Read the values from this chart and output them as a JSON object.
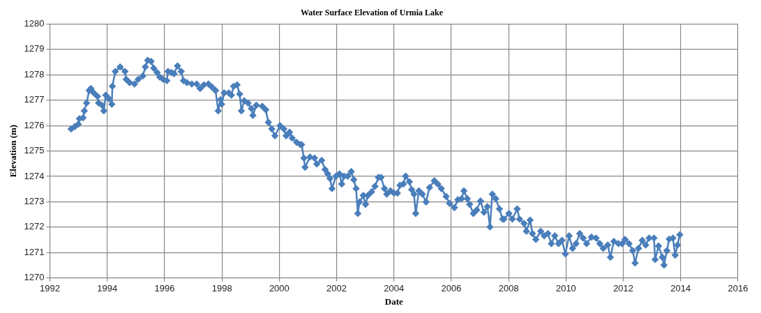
{
  "chart_data": {
    "type": "line",
    "title": "Water Surface Elevation of Urmia Lake",
    "xlabel": "Date",
    "ylabel": "Elevation (m)",
    "color": "#4a7ebb",
    "marker": "diamond",
    "grid": true,
    "xlim": [
      1992,
      2016
    ],
    "xticks": [
      1992,
      1994,
      1996,
      1998,
      2000,
      2002,
      2004,
      2006,
      2008,
      2010,
      2012,
      2014,
      2016
    ],
    "ylim": [
      1270,
      1280
    ],
    "yticks": [
      1270,
      1271,
      1272,
      1273,
      1274,
      1275,
      1276,
      1277,
      1278,
      1279,
      1280
    ],
    "x": [
      1992.74,
      1992.87,
      1992.99,
      1993.03,
      1993.16,
      1993.2,
      1993.28,
      1993.37,
      1993.43,
      1993.53,
      1993.66,
      1993.7,
      1993.82,
      1993.88,
      1993.95,
      1994.05,
      1994.16,
      1994.18,
      1994.28,
      1994.45,
      1994.62,
      1994.66,
      1994.78,
      1994.95,
      1995.08,
      1995.24,
      1995.33,
      1995.41,
      1995.53,
      1995.62,
      1995.74,
      1995.83,
      1995.95,
      1996.08,
      1996.12,
      1996.24,
      1996.33,
      1996.45,
      1996.58,
      1996.66,
      1996.78,
      1996.95,
      1997.12,
      1997.24,
      1997.37,
      1997.53,
      1997.66,
      1997.78,
      1997.87,
      1997.95,
      1997.99,
      1998.08,
      1998.24,
      1998.33,
      1998.41,
      1998.53,
      1998.62,
      1998.68,
      1998.78,
      1998.91,
      1999.03,
      1999.08,
      1999.2,
      1999.41,
      1999.53,
      1999.62,
      1999.74,
      1999.85,
      2000.03,
      2000.16,
      2000.24,
      2000.36,
      2000.45,
      2000.61,
      2000.74,
      2000.78,
      2000.86,
      2000.9,
      2001.07,
      2001.23,
      2001.31,
      2001.48,
      2001.6,
      2001.69,
      2001.77,
      2001.84,
      2001.98,
      2002.1,
      2002.18,
      2002.26,
      2002.39,
      2002.51,
      2002.6,
      2002.68,
      2002.74,
      2002.8,
      2002.93,
      2003.01,
      2003.09,
      2003.22,
      2003.34,
      2003.46,
      2003.55,
      2003.67,
      2003.75,
      2003.88,
      2004.0,
      2004.12,
      2004.21,
      2004.33,
      2004.41,
      2004.54,
      2004.62,
      2004.7,
      2004.76,
      2004.87,
      2004.99,
      2005.12,
      2005.24,
      2005.41,
      2005.53,
      2005.65,
      2005.82,
      2005.94,
      2006.11,
      2006.23,
      2006.36,
      2006.44,
      2006.56,
      2006.64,
      2006.77,
      2006.89,
      2007.02,
      2007.14,
      2007.26,
      2007.35,
      2007.43,
      2007.55,
      2007.68,
      2007.79,
      2007.84,
      2008.01,
      2008.13,
      2008.3,
      2008.38,
      2008.54,
      2008.62,
      2008.75,
      2008.83,
      2008.95,
      2009.12,
      2009.24,
      2009.37,
      2009.49,
      2009.61,
      2009.74,
      2009.86,
      2009.98,
      2010.11,
      2010.23,
      2010.35,
      2010.48,
      2010.6,
      2010.72,
      2010.89,
      2011.05,
      2011.18,
      2011.3,
      2011.46,
      2011.55,
      2011.67,
      2011.83,
      2011.96,
      2012.06,
      2012.2,
      2012.33,
      2012.41,
      2012.53,
      2012.66,
      2012.78,
      2012.9,
      2013.07,
      2013.11,
      2013.23,
      2013.36,
      2013.42,
      2013.52,
      2013.6,
      2013.73,
      2013.81,
      2013.89,
      2013.97
    ],
    "values": [
      1275.87,
      1275.96,
      1276.05,
      1276.27,
      1276.31,
      1276.58,
      1276.89,
      1277.38,
      1277.46,
      1277.29,
      1277.15,
      1276.89,
      1276.8,
      1276.58,
      1277.2,
      1277.07,
      1276.84,
      1277.55,
      1278.13,
      1278.31,
      1278.13,
      1277.82,
      1277.69,
      1277.64,
      1277.82,
      1277.95,
      1278.31,
      1278.57,
      1278.53,
      1278.26,
      1278.09,
      1277.91,
      1277.82,
      1277.77,
      1278.13,
      1278.09,
      1278.04,
      1278.35,
      1278.13,
      1277.77,
      1277.69,
      1277.64,
      1277.64,
      1277.46,
      1277.6,
      1277.64,
      1277.51,
      1277.38,
      1276.58,
      1277.02,
      1276.84,
      1277.29,
      1277.29,
      1277.2,
      1277.55,
      1277.6,
      1277.24,
      1276.58,
      1276.98,
      1276.89,
      1276.67,
      1276.4,
      1276.8,
      1276.76,
      1276.62,
      1276.13,
      1275.87,
      1275.6,
      1276.0,
      1275.87,
      1275.6,
      1275.74,
      1275.51,
      1275.34,
      1275.25,
      1275.25,
      1274.72,
      1274.36,
      1274.76,
      1274.72,
      1274.49,
      1274.63,
      1274.27,
      1274.1,
      1273.92,
      1273.52,
      1274.01,
      1274.1,
      1273.7,
      1274.01,
      1274.01,
      1274.19,
      1273.87,
      1273.52,
      1272.54,
      1272.99,
      1273.25,
      1272.9,
      1273.25,
      1273.39,
      1273.61,
      1273.96,
      1273.96,
      1273.52,
      1273.3,
      1273.43,
      1273.34,
      1273.34,
      1273.65,
      1273.7,
      1274.01,
      1273.79,
      1273.48,
      1273.3,
      1272.54,
      1273.43,
      1273.3,
      1272.99,
      1273.56,
      1273.83,
      1273.7,
      1273.52,
      1273.21,
      1272.94,
      1272.77,
      1273.08,
      1273.12,
      1273.43,
      1273.12,
      1272.9,
      1272.54,
      1272.68,
      1273.03,
      1272.59,
      1272.81,
      1272.01,
      1273.3,
      1273.12,
      1272.72,
      1272.32,
      1272.32,
      1272.54,
      1272.32,
      1272.72,
      1272.32,
      1272.15,
      1271.84,
      1272.28,
      1271.75,
      1271.52,
      1271.84,
      1271.66,
      1271.75,
      1271.35,
      1271.66,
      1271.35,
      1271.48,
      1270.95,
      1271.66,
      1271.17,
      1271.35,
      1271.75,
      1271.57,
      1271.35,
      1271.61,
      1271.57,
      1271.35,
      1271.17,
      1271.3,
      1270.82,
      1271.44,
      1271.35,
      1271.35,
      1271.52,
      1271.35,
      1271.08,
      1270.59,
      1271.17,
      1271.48,
      1271.3,
      1271.57,
      1271.57,
      1270.73,
      1271.26,
      1270.82,
      1270.51,
      1271.08,
      1271.53,
      1271.57,
      1270.9,
      1271.3,
      1271.7
    ]
  }
}
